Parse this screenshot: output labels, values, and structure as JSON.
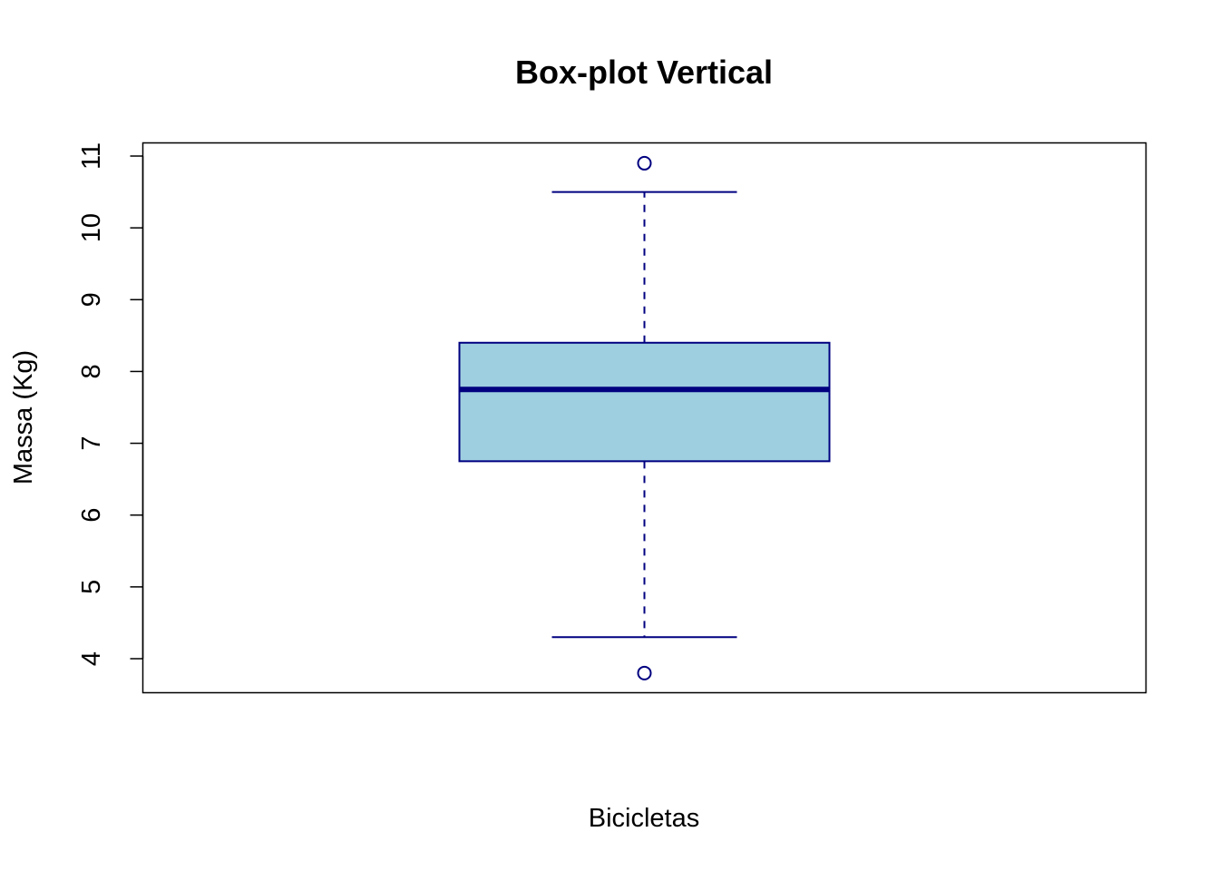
{
  "chart_data": {
    "type": "boxplot",
    "title": "Box-plot Vertical",
    "xlabel": "Bicicletas",
    "ylabel": "Massa (Kg)",
    "ylim": [
      3.5,
      11.2
    ],
    "y_ticks": [
      4,
      5,
      6,
      7,
      8,
      9,
      10,
      11
    ],
    "grid": false,
    "boxes": [
      {
        "whisker_low": 4.3,
        "q1": 6.75,
        "median": 7.75,
        "q3": 8.4,
        "whisker_high": 10.5,
        "outliers": [
          3.8,
          10.9
        ]
      }
    ],
    "colors": {
      "box_fill": "#9ecfe0",
      "box_border": "#000080",
      "median": "#000080",
      "whisker": "#000080",
      "outlier": "#000080"
    }
  }
}
